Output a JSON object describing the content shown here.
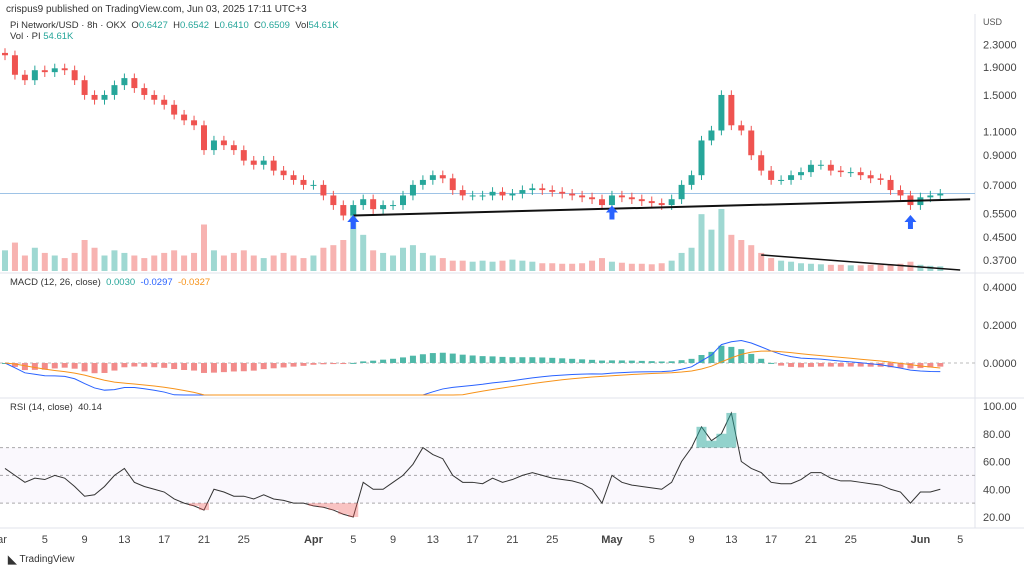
{
  "header": {
    "published": "crispus9 published on TradingView.com, Jun 03, 2025 17:11 UTC+3",
    "symbol": "Pi Network/USD · 8h · OKX",
    "o_label": "O",
    "o": "0.6427",
    "h_label": "H",
    "h": "0.6542",
    "l_label": "L",
    "l": "0.6410",
    "c_label": "C",
    "c": "0.6509",
    "vol_label": "Vol",
    "vol": "54.61K",
    "vol_ind": "Vol · PI",
    "vol_ind_value": "54.61K"
  },
  "macd_legend": {
    "label": "MACD (12, 26, close)",
    "hist": "0.0030",
    "macd": "-0.0297",
    "signal": "-0.0327"
  },
  "rsi_legend": {
    "label": "RSI (14, close)",
    "value": "40.14"
  },
  "footer": {
    "brand": "TradingView"
  },
  "colors": {
    "up": "#26a69a",
    "down": "#ef5350",
    "macd": "#2962ff",
    "signal": "#f7931a",
    "rsi": "#333333",
    "arrow": "#2962ff"
  },
  "chart_data": {
    "type": "candlestick",
    "title": "Pi Network/USD · 8h · OKX",
    "price_axis": {
      "label": "USD",
      "scale": "log",
      "ticks": [
        "2.3000",
        "1.9000",
        "1.5000",
        "1.1000",
        "0.9000",
        "0.7000",
        "0.5500",
        "0.4500",
        "0.3700"
      ],
      "tick_values": [
        2.3,
        1.9,
        1.5,
        1.1,
        0.9,
        0.7,
        0.55,
        0.45,
        0.37
      ]
    },
    "macd_axis": {
      "ticks": [
        "0.4000",
        "0.2000",
        "0.0000"
      ],
      "tick_values": [
        0.4,
        0.2,
        0
      ]
    },
    "rsi_axis": {
      "ticks": [
        "100.00",
        "80.00",
        "60.00",
        "40.00",
        "20.00"
      ],
      "tick_values": [
        100,
        80,
        60,
        40,
        20
      ],
      "bands": [
        70,
        50,
        30
      ]
    },
    "x_labels": [
      {
        "label": "ar",
        "day": -0.3
      },
      {
        "label": "5",
        "day": 4
      },
      {
        "label": "9",
        "day": 8
      },
      {
        "label": "13",
        "day": 12
      },
      {
        "label": "17",
        "day": 16
      },
      {
        "label": "21",
        "day": 20
      },
      {
        "label": "25",
        "day": 24
      },
      {
        "label": "Apr",
        "day": 31
      },
      {
        "label": "5",
        "day": 35
      },
      {
        "label": "9",
        "day": 39
      },
      {
        "label": "13",
        "day": 43
      },
      {
        "label": "17",
        "day": 47
      },
      {
        "label": "21",
        "day": 51
      },
      {
        "label": "25",
        "day": 55
      },
      {
        "label": "May",
        "day": 61
      },
      {
        "label": "5",
        "day": 65
      },
      {
        "label": "9",
        "day": 69
      },
      {
        "label": "13",
        "day": 73
      },
      {
        "label": "17",
        "day": 77
      },
      {
        "label": "21",
        "day": 81
      },
      {
        "label": "25",
        "day": 85
      },
      {
        "label": "Jun",
        "day": 92
      },
      {
        "label": "5",
        "day": 96
      }
    ],
    "close": [
      2.1,
      1.78,
      1.7,
      1.85,
      1.82,
      1.88,
      1.85,
      1.7,
      1.5,
      1.44,
      1.5,
      1.63,
      1.73,
      1.59,
      1.5,
      1.44,
      1.38,
      1.27,
      1.21,
      1.16,
      0.94,
      1.02,
      0.98,
      0.94,
      0.86,
      0.83,
      0.86,
      0.79,
      0.76,
      0.73,
      0.7,
      0.7,
      0.64,
      0.59,
      0.54,
      0.59,
      0.62,
      0.57,
      0.59,
      0.59,
      0.64,
      0.7,
      0.73,
      0.76,
      0.74,
      0.67,
      0.64,
      0.64,
      0.64,
      0.66,
      0.64,
      0.65,
      0.67,
      0.68,
      0.67,
      0.66,
      0.65,
      0.64,
      0.63,
      0.62,
      0.59,
      0.64,
      0.63,
      0.62,
      0.61,
      0.6,
      0.59,
      0.62,
      0.7,
      0.76,
      1.02,
      1.11,
      1.5,
      1.16,
      1.11,
      0.9,
      0.79,
      0.73,
      0.73,
      0.76,
      0.78,
      0.83,
      0.83,
      0.79,
      0.78,
      0.78,
      0.76,
      0.74,
      0.73,
      0.67,
      0.64,
      0.59,
      0.63,
      0.64,
      0.65
    ],
    "volume": [
      40,
      55,
      30,
      45,
      35,
      30,
      25,
      35,
      60,
      45,
      30,
      40,
      35,
      30,
      25,
      30,
      35,
      40,
      30,
      35,
      90,
      40,
      30,
      35,
      40,
      30,
      25,
      30,
      35,
      30,
      25,
      30,
      45,
      50,
      60,
      110,
      70,
      40,
      35,
      30,
      45,
      50,
      35,
      30,
      25,
      20,
      20,
      18,
      20,
      18,
      20,
      22,
      20,
      18,
      15,
      15,
      14,
      14,
      15,
      20,
      25,
      18,
      16,
      14,
      14,
      13,
      15,
      20,
      35,
      45,
      110,
      80,
      120,
      70,
      60,
      50,
      35,
      25,
      20,
      18,
      15,
      14,
      13,
      12,
      12,
      11,
      11,
      12,
      12,
      13,
      14,
      18,
      12,
      10,
      9
    ],
    "rsi": [
      55,
      50,
      45,
      48,
      47,
      50,
      48,
      42,
      35,
      36,
      42,
      50,
      55,
      45,
      42,
      40,
      38,
      33,
      30,
      28,
      25,
      40,
      38,
      35,
      35,
      33,
      36,
      33,
      32,
      30,
      30,
      28,
      27,
      25,
      22,
      20,
      45,
      40,
      40,
      45,
      50,
      58,
      70,
      65,
      62,
      50,
      45,
      45,
      44,
      48,
      45,
      47,
      50,
      52,
      50,
      48,
      47,
      46,
      44,
      40,
      30,
      50,
      45,
      43,
      42,
      41,
      40,
      45,
      60,
      70,
      85,
      75,
      80,
      95,
      60,
      55,
      52,
      45,
      44,
      44,
      47,
      52,
      52,
      48,
      46,
      46,
      45,
      44,
      43,
      40,
      38,
      30,
      38,
      38,
      40
    ],
    "trendlines": [
      {
        "pane": "price",
        "from": {
          "day": 35,
          "price": 0.54
        },
        "to": {
          "day": 97,
          "price": 0.62
        }
      },
      {
        "pane": "volume",
        "from": {
          "day": 76,
          "vol": "high"
        },
        "to": {
          "day": 96,
          "vol": "low"
        }
      }
    ],
    "arrows": [
      {
        "day": 35
      },
      {
        "day": 61
      },
      {
        "day": 91
      }
    ],
    "last_price": 0.6509
  }
}
